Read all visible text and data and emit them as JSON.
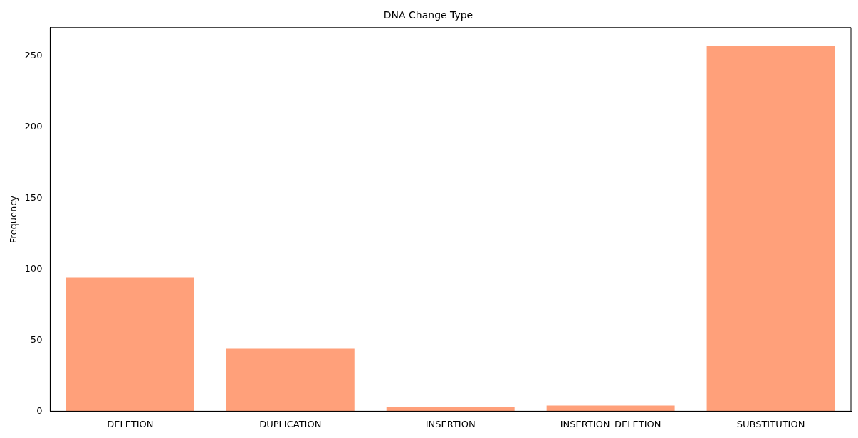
{
  "chart_data": {
    "type": "bar",
    "title": "DNA Change Type",
    "ylabel": "Frequency",
    "categories": [
      "DELETION",
      "DUPLICATION",
      "INSERTION",
      "INSERTION_DELETION",
      "SUBSTITUTION"
    ],
    "values": [
      94,
      44,
      3,
      4,
      257
    ],
    "color": "#ffa07a",
    "ylim": [
      0,
      270
    ],
    "yticks": [
      0,
      50,
      100,
      150,
      200,
      250
    ],
    "grid": false,
    "legend": false
  }
}
